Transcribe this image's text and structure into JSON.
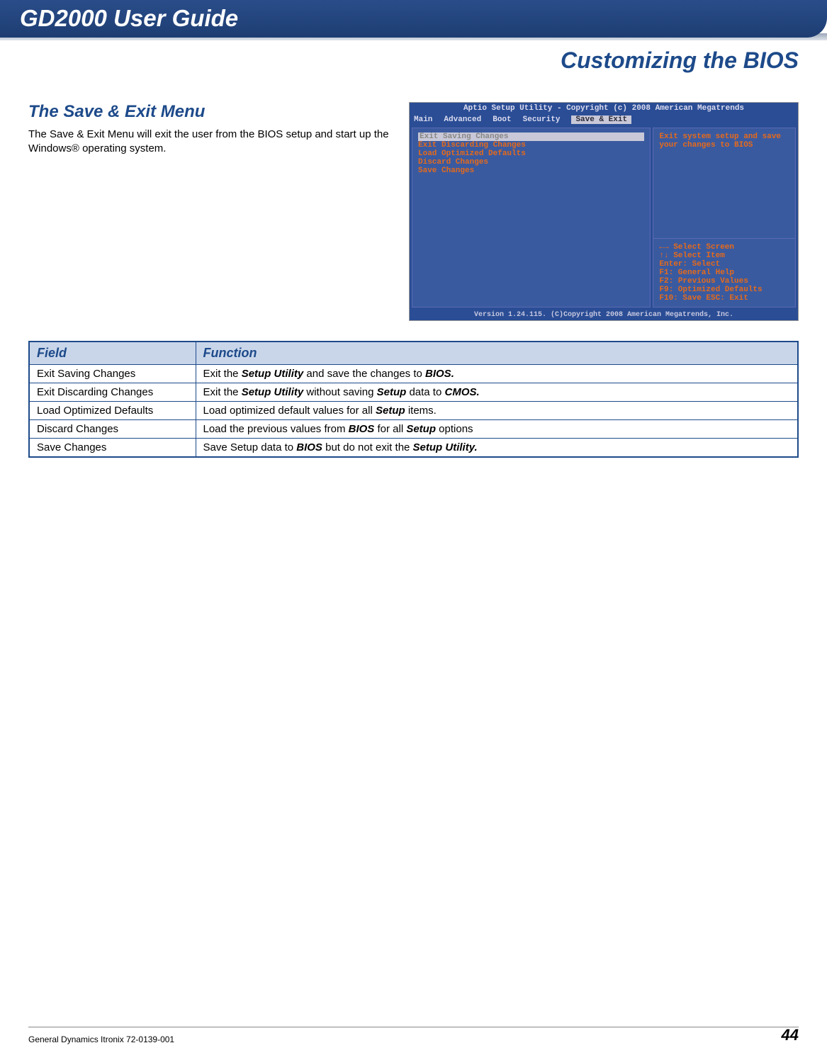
{
  "header": {
    "guide_title": "GD2000 User Guide",
    "chapter_title": "Customizing the BIOS"
  },
  "section": {
    "heading": "The Save & Exit Menu",
    "body": "The Save & Exit  Menu will exit the user from the BIOS setup and start up the Windows® operating system."
  },
  "bios_screenshot": {
    "top_bar": "Aptio Setup Utility - Copyright (c) 2008 American Megatrends",
    "tabs": [
      "Main",
      "Advanced",
      "Boot",
      "Security",
      "Save & Exit"
    ],
    "active_tab_index": 4,
    "menu_items": [
      "Exit Saving Changes",
      "Exit Discarding Changes",
      "Load Optimized Defaults",
      "Discard Changes",
      "Save Changes"
    ],
    "selected_index": 0,
    "help_text": "Exit system setup and save your changes to BIOS",
    "key_hints": [
      "←→  Select Screen",
      "↑↓  Select Item",
      "Enter: Select",
      "F1: General Help",
      "F2: Previous Values",
      "F9: Optimized Defaults",
      "F10: Save ESC: Exit"
    ],
    "footer": "Version 1.24.115. (C)Copyright 2008 American Megatrends, Inc."
  },
  "table": {
    "headers": [
      "Field",
      "Function"
    ],
    "rows": [
      {
        "field": "Exit Saving Changes",
        "plain1": "Exit the ",
        "bold1": "Setup Utility",
        "plain2": " and save the changes to ",
        "bold2": "BIOS.",
        "plain3": "",
        "bold3": "",
        "plain4": ""
      },
      {
        "field": "Exit Discarding Changes",
        "plain1": "Exit the ",
        "bold1": "Setup Utility",
        "plain2": " without saving ",
        "bold2": "Setup",
        "plain3": " data to ",
        "bold3": "CMOS.",
        "plain4": ""
      },
      {
        "field": "Load Optimized Defaults",
        "plain1": "Load optimized default values for all ",
        "bold1": "Setup",
        "plain2": " items.",
        "bold2": "",
        "plain3": "",
        "bold3": "",
        "plain4": ""
      },
      {
        "field": "Discard Changes",
        "plain1": "Load the previous values from ",
        "bold1": "BIOS",
        "plain2": " for all ",
        "bold2": "Setup",
        "plain3": " options",
        "bold3": "",
        "plain4": ""
      },
      {
        "field": "Save Changes",
        "plain1": "Save Setup data to ",
        "bold1": "BIOS",
        "plain2": " but do not exit the ",
        "bold2": "Setup Utility.",
        "plain3": "",
        "bold3": "",
        "plain4": ""
      }
    ]
  },
  "footer": {
    "doc_id": "General Dynamics Itronix 72-0139-001",
    "page": "44"
  },
  "colors": {
    "brand_blue": "#1d4a8a",
    "header_grad_top": "#2a4d8a",
    "header_grad_bot": "#1d3d72",
    "table_header_bg": "#c9d6ea",
    "bios_bg": "#2a4d95",
    "bios_panel": "#3a5aa0",
    "bios_text": "#e66a1a"
  }
}
